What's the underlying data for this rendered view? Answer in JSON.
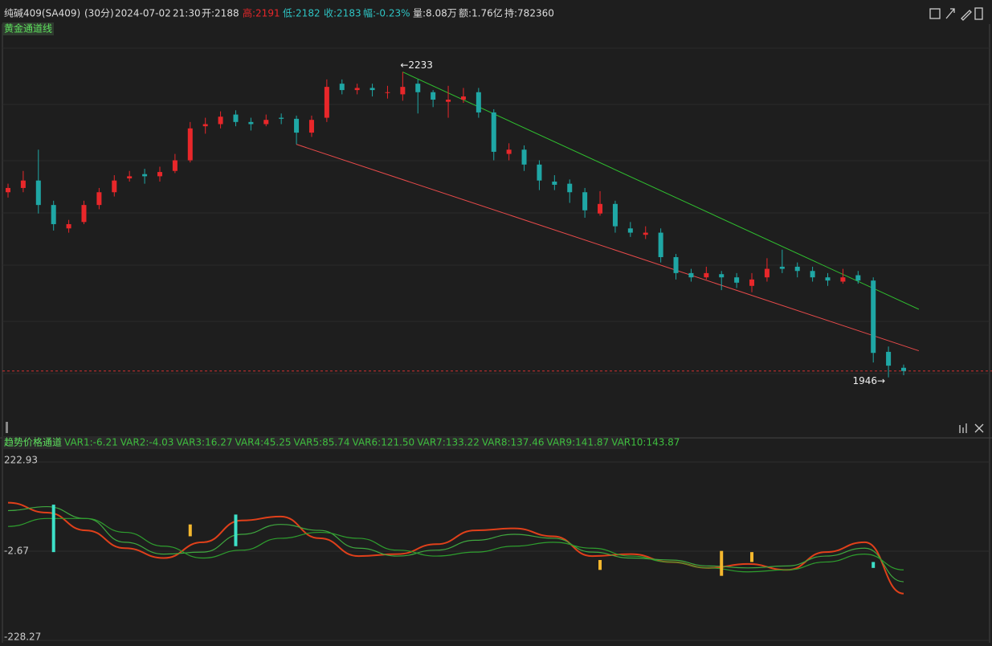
{
  "header": {
    "symbol": "纯碱409(SA409)",
    "period": "(30分)",
    "date": "2024-07-02",
    "time": "21:30",
    "open": "开:2188",
    "high": "高:2191",
    "low": "低:2182",
    "close": "收:2183",
    "change": "幅:-0.23%",
    "volume": "量:8.08万",
    "amount": "额:1.76亿",
    "position": "持:782360"
  },
  "chart_data": [
    {
      "type": "candlestick",
      "title": "黄金通道线",
      "ylim": [
        1908,
        2278
      ],
      "up_color": "#e8272a",
      "down_color": "#1fa7a5",
      "candles": [
        [
          2120,
          2128,
          2115,
          2124
        ],
        [
          2124,
          2140,
          2120,
          2131
        ],
        [
          2131,
          2160,
          2100,
          2108
        ],
        [
          2108,
          2112,
          2084,
          2090
        ],
        [
          2086,
          2094,
          2082,
          2090
        ],
        [
          2092,
          2112,
          2090,
          2108
        ],
        [
          2108,
          2124,
          2104,
          2120
        ],
        [
          2120,
          2136,
          2116,
          2131
        ],
        [
          2133,
          2140,
          2130,
          2135
        ],
        [
          2137,
          2142,
          2128,
          2135
        ],
        [
          2135,
          2144,
          2130,
          2139
        ],
        [
          2140,
          2156,
          2138,
          2150
        ],
        [
          2150,
          2186,
          2148,
          2180
        ],
        [
          2182,
          2190,
          2175,
          2184
        ],
        [
          2184,
          2196,
          2180,
          2191
        ],
        [
          2193,
          2197,
          2182,
          2186
        ],
        [
          2186,
          2190,
          2178,
          2184
        ],
        [
          2184,
          2193,
          2182,
          2188
        ],
        [
          2190,
          2194,
          2184,
          2189
        ],
        [
          2189,
          2192,
          2165,
          2176
        ],
        [
          2176,
          2192,
          2172,
          2188
        ],
        [
          2190,
          2226,
          2186,
          2219
        ],
        [
          2222,
          2226,
          2212,
          2216
        ],
        [
          2216,
          2222,
          2212,
          2218
        ],
        [
          2218,
          2222,
          2210,
          2216
        ],
        [
          2214,
          2220,
          2208,
          2214
        ],
        [
          2212,
          2233,
          2206,
          2219
        ],
        [
          2222,
          2226,
          2194,
          2214
        ],
        [
          2214,
          2216,
          2200,
          2207
        ],
        [
          2205,
          2220,
          2190,
          2207
        ],
        [
          2207,
          2218,
          2204,
          2210
        ],
        [
          2214,
          2218,
          2190,
          2195
        ],
        [
          2195,
          2198,
          2150,
          2158
        ],
        [
          2156,
          2166,
          2150,
          2160
        ],
        [
          2160,
          2164,
          2140,
          2146
        ],
        [
          2146,
          2150,
          2122,
          2131
        ],
        [
          2130,
          2136,
          2122,
          2127
        ],
        [
          2128,
          2132,
          2110,
          2120
        ],
        [
          2120,
          2124,
          2096,
          2103
        ],
        [
          2100,
          2121,
          2098,
          2109
        ],
        [
          2109,
          2112,
          2082,
          2088
        ],
        [
          2086,
          2092,
          2078,
          2082
        ],
        [
          2080,
          2088,
          2076,
          2082
        ],
        [
          2082,
          2086,
          2054,
          2059
        ],
        [
          2059,
          2062,
          2038,
          2044
        ],
        [
          2044,
          2048,
          2036,
          2040
        ],
        [
          2040,
          2050,
          2038,
          2044
        ],
        [
          2043,
          2046,
          2028,
          2040
        ],
        [
          2040,
          2044,
          2030,
          2035
        ],
        [
          2032,
          2044,
          2026,
          2038
        ],
        [
          2040,
          2058,
          2036,
          2048
        ],
        [
          2050,
          2066,
          2044,
          2048
        ],
        [
          2050,
          2054,
          2040,
          2046
        ],
        [
          2046,
          2050,
          2036,
          2040
        ],
        [
          2040,
          2044,
          2032,
          2037
        ],
        [
          2036,
          2048,
          2034,
          2040
        ],
        [
          2042,
          2046,
          2034,
          2037
        ],
        [
          2037,
          2040,
          1960,
          1969
        ],
        [
          1970,
          1975,
          1946,
          1957
        ],
        [
          1955,
          1958,
          1948,
          1952
        ]
      ],
      "trendlines": [
        {
          "color": "#2fbf2f",
          "points": [
            [
              26,
              2233
            ],
            [
              60,
              2010
            ]
          ]
        },
        {
          "color": "#e84a4a",
          "points": [
            [
              19,
              2165
            ],
            [
              60,
              1971
            ]
          ]
        }
      ],
      "last_price": 1952,
      "high_label": "←2233",
      "low_label": "1946→"
    },
    {
      "type": "ribbon",
      "title": "趋势价格通道",
      "legend": [
        "VAR1:-6.21",
        "VAR2:-4.03",
        "VAR3:16.27",
        "VAR4:45.25",
        "VAR5:85.74",
        "VAR6:121.50",
        "VAR7:133.22",
        "VAR8:137.46",
        "VAR9:141.87",
        "VAR10:143.87"
      ],
      "ylim": [
        -228.27,
        222.93
      ],
      "yticks": [
        222.93,
        -2.67,
        -228.27
      ],
      "series": [
        {
          "color": "#e0401a",
          "values": [
            120,
            95,
            50,
            5,
            -20,
            20,
            75,
            85,
            30,
            -15,
            -10,
            15,
            50,
            55,
            35,
            -15,
            -10,
            -30,
            -45,
            -35,
            -50,
            -5,
            20,
            -110
          ]
        },
        {
          "color": "#3fa83f",
          "values": [
            100,
            110,
            80,
            20,
            -10,
            -5,
            40,
            65,
            50,
            5,
            -15,
            0,
            25,
            40,
            30,
            -5,
            -20,
            -25,
            -40,
            -45,
            -40,
            -15,
            5,
            -80
          ]
        },
        {
          "color": "#2e9e2e",
          "values": [
            60,
            80,
            80,
            45,
            10,
            -20,
            0,
            30,
            45,
            30,
            0,
            -15,
            -5,
            10,
            20,
            5,
            -15,
            -30,
            -45,
            -55,
            -50,
            -30,
            -10,
            -50
          ]
        }
      ],
      "signals": [
        {
          "index": 3,
          "values": [
            115,
            -5
          ],
          "color": "#3de0c8"
        },
        {
          "index": 12,
          "values": [
            65,
            35
          ],
          "color": "#f5b82e"
        },
        {
          "index": 15,
          "values": [
            90,
            10
          ],
          "color": "#3de0c8"
        },
        {
          "index": 39,
          "values": [
            -25,
            -50
          ],
          "color": "#f5b82e"
        },
        {
          "index": 47,
          "values": [
            -2,
            -65
          ],
          "color": "#f5b82e"
        },
        {
          "index": 49,
          "values": [
            -5,
            -30
          ],
          "color": "#f5b82e"
        },
        {
          "index": 57,
          "values": [
            -30,
            -45
          ],
          "color": "#3de0c8"
        }
      ]
    }
  ]
}
